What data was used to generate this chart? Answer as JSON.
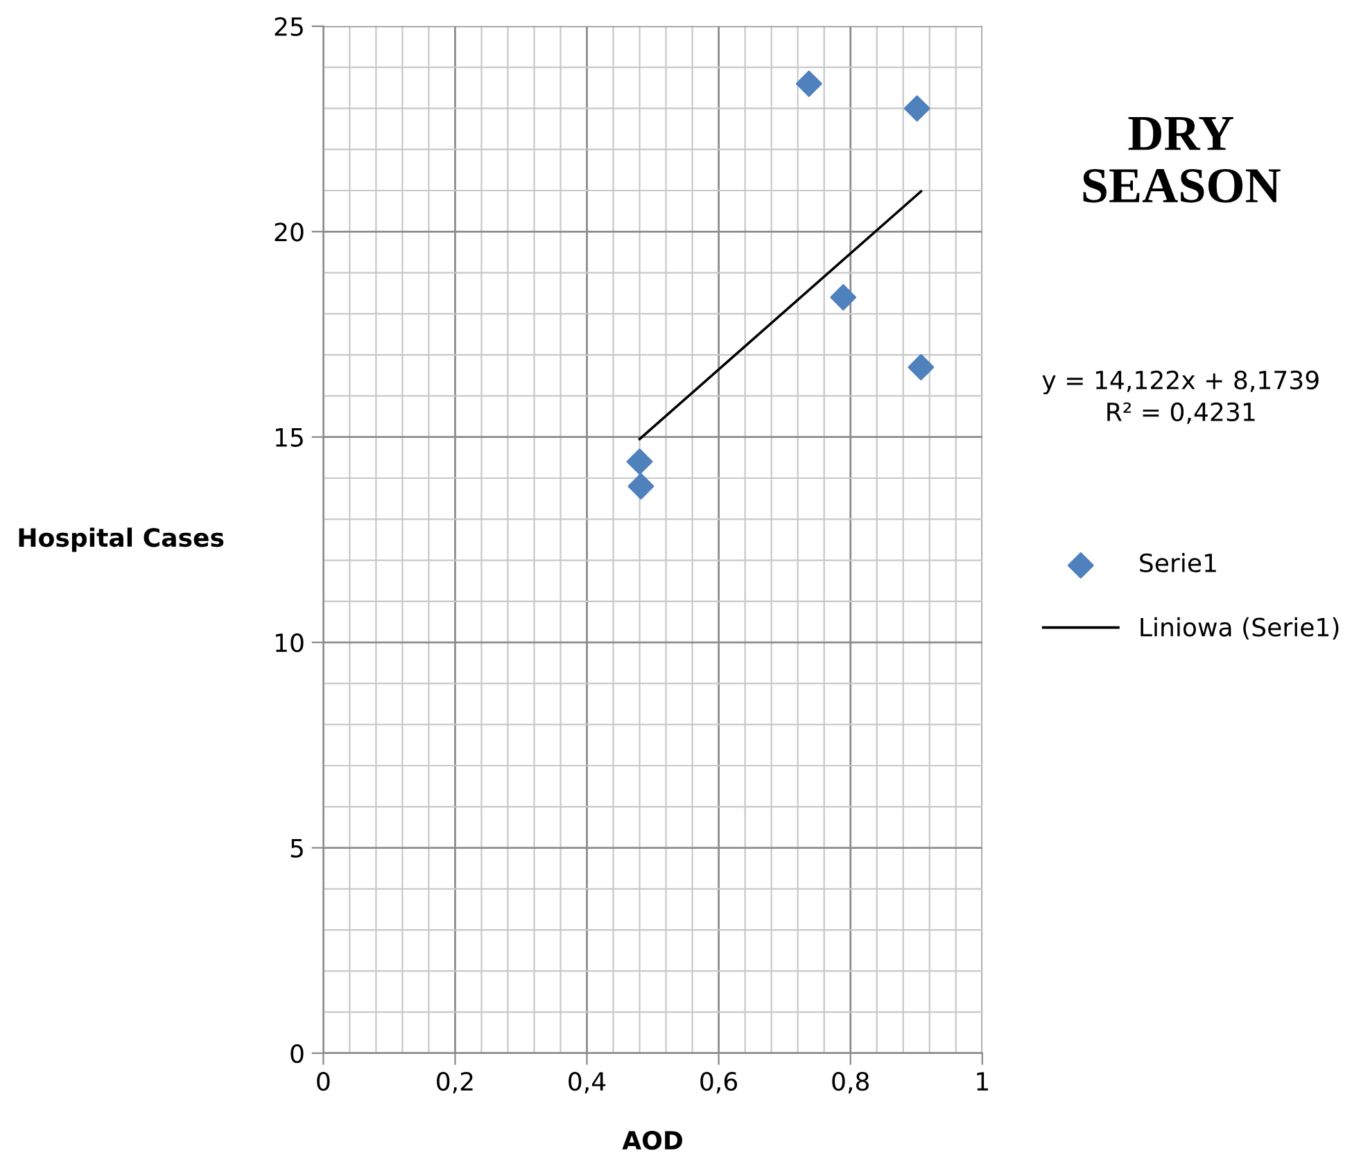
{
  "chart_data": {
    "type": "scatter",
    "title": "DRY SEASON",
    "xlabel": "AOD",
    "ylabel": "Hospital Cases",
    "xlim": [
      0,
      1
    ],
    "ylim": [
      0,
      25
    ],
    "xticks": [
      0,
      {
        "value": 0.2,
        "label": "0,2"
      },
      {
        "value": 0.4,
        "label": "0,4"
      },
      {
        "value": 0.6,
        "label": "0,6"
      },
      {
        "value": 0.8,
        "label": "0,8"
      },
      1
    ],
    "yticks": [
      0,
      5,
      10,
      15,
      20,
      25
    ],
    "grid": true,
    "legend": "right",
    "marker": "diamond",
    "annotations": [
      "y = 14,122x + 8,1739\nR² = 0,4231"
    ],
    "series": [
      {
        "name": "Serie1",
        "color": "#4f81bd",
        "x": [
          0.48,
          0.482,
          0.737,
          0.901,
          0.789,
          0.907
        ],
        "values": [
          14.4,
          13.8,
          23.6,
          23.0,
          18.4,
          16.7
        ]
      },
      {
        "name": "Liniowa (Serie1)",
        "type": "line",
        "color": "#000000",
        "marker": "none",
        "line_style": "solid",
        "x": [
          0.48,
          0.907
        ],
        "values": [
          14.95,
          20.98
        ]
      }
    ]
  }
}
